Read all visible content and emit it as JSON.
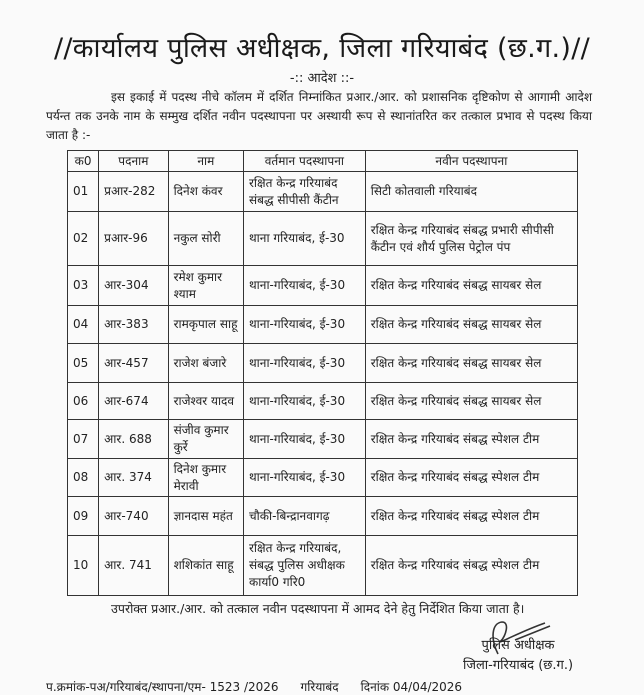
{
  "header": {
    "title": "//कार्यालय पुलिस अधीक्षक, जिला गरियाबंद (छ.ग.)//",
    "order_heading": "-:: आदेश ::-",
    "intro": "इस इकाई में पदस्थ नीचे कॉलम में दर्शित निम्नांकित प्रआर./आर. को प्रशासनिक दृष्टिकोण से आगामी आदेश पर्यन्त तक उनके नाम के सम्मुख दर्शित नवीन पदस्थापना पर अस्थायी रूप से स्थानांतरित कर तत्काल प्रभाव से पदस्थ किया जाता है :-"
  },
  "table": {
    "columns": [
      "क0",
      "पदनाम",
      "नाम",
      "वर्तमान पदस्थापना",
      "नवीन पदस्थापना"
    ],
    "rows": [
      [
        "01",
        "प्रआर-282",
        "दिनेश कंवर",
        "रक्षित केन्द्र गरियाबंद संबद्ध सीपीसी कैंटीन",
        "सिटी कोतवाली गरियाबंद"
      ],
      [
        "02",
        "प्रआर-96",
        "नकुल सोरी",
        "थाना गरियाबंद, ई-30",
        "रक्षित केन्द्र गरियाबंद संबद्ध प्रभारी सीपीसी कैंटीन एवं शौर्य पुलिस पेट्रोल पंप"
      ],
      [
        "03",
        "आर-304",
        "रमेश कुमार श्याम",
        "थाना-गरियाबंद, ई-30",
        "रक्षित केन्द्र गरियाबंद संबद्ध सायबर सेल"
      ],
      [
        "04",
        "आर-383",
        "रामकृपाल साहू",
        "थाना-गरियाबंद, ई-30",
        "रक्षित केन्द्र गरियाबंद संबद्ध सायबर सेल"
      ],
      [
        "05",
        "आर-457",
        "राजेश बंजारे",
        "थाना-गरियाबंद, ई-30",
        "रक्षित केन्द्र गरियाबंद संबद्ध सायबर सेल"
      ],
      [
        "06",
        "आर-674",
        "राजेश्वर यादव",
        "थाना-गरियाबंद, ई-30",
        "रक्षित केन्द्र गरियाबंद संबद्ध सायबर सेल"
      ],
      [
        "07",
        "आर. 688",
        "संजीव कुमार कुर्रे",
        "थाना-गरियाबंद, ई-30",
        "रक्षित केन्द्र गरियाबंद संबद्ध स्पेशल टीम"
      ],
      [
        "08",
        "आर. 374",
        "दिनेश कुमार मेरावी",
        "थाना-गरियाबंद, ई-30",
        "रक्षित केन्द्र गरियाबंद संबद्ध स्पेशल टीम"
      ],
      [
        "09",
        "आर-740",
        "ज्ञानदास महंत",
        "चौकी-बिन्द्रानवागढ़",
        "रक्षित केन्द्र गरियाबंद संबद्ध स्पेशल टीम"
      ],
      [
        "10",
        "आर. 741",
        "शशिकांत साहू",
        "रक्षित केन्द्र गरियाबंद, संबद्ध पुलिस अधीक्षक कार्या0 गरि0",
        "रक्षित केन्द्र गरियाबंद संबद्ध स्पेशल टीम"
      ]
    ]
  },
  "closing": "उपरोक्त प्रआर./आर. को तत्काल नवीन पदस्थापना में आमद देने हेतु निर्देशित किया जाता है।",
  "signature": {
    "designation": "पुलिस अधीक्षक",
    "district": "जिला-गरियाबंद (छ.ग.)"
  },
  "reference": {
    "number": "प.क्रमांक-पअ/गरियाबंद/स्थापना/एम- 1523 /2026",
    "place": "गरियाबंद",
    "date": "दिनांक 04/04/2026"
  }
}
